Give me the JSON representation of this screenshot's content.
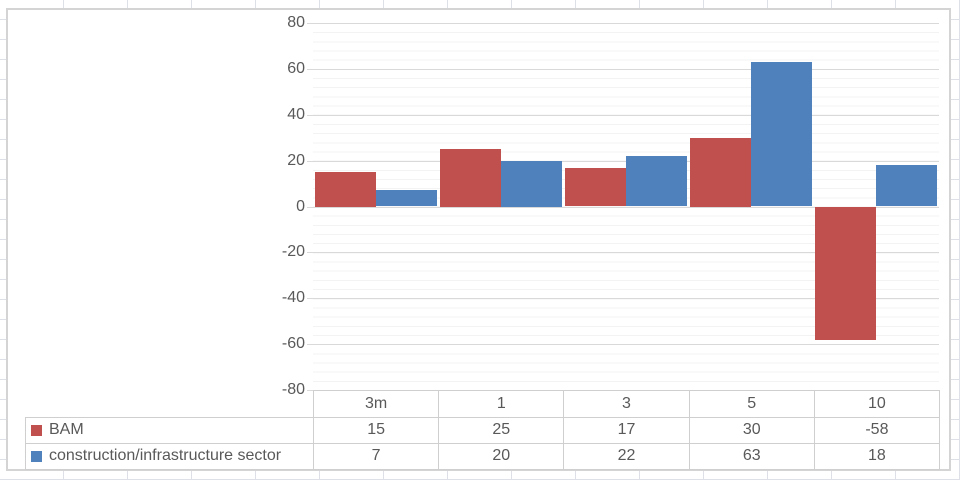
{
  "chart_data": {
    "type": "bar",
    "title": "",
    "xlabel": "",
    "ylabel": "",
    "categories": [
      "3m",
      "1",
      "3",
      "5",
      "10"
    ],
    "series": [
      {
        "name": "BAM",
        "color": "#C0504D",
        "values": [
          15,
          25,
          17,
          30,
          -58
        ]
      },
      {
        "name": "construction/infrastructure sector",
        "color": "#4F81BD",
        "values": [
          7,
          20,
          22,
          63,
          18
        ]
      }
    ],
    "ylim": [
      -80,
      80
    ],
    "ytick_interval": 20,
    "minor_tick_interval": 4,
    "yticks": [
      80,
      60,
      40,
      20,
      0,
      -20,
      -40,
      -60,
      -80
    ],
    "grid": "major and minor horizontal gridlines",
    "legend_position": "bottom data table, left column with color keys"
  },
  "colors": {
    "text": "#595959",
    "major_gridline": "#D9D9D9",
    "minor_gridline": "#F3F3F3",
    "table_border": "#CFCFCF",
    "series_bam": "#C0504D",
    "series_sector": "#4F81BD"
  }
}
